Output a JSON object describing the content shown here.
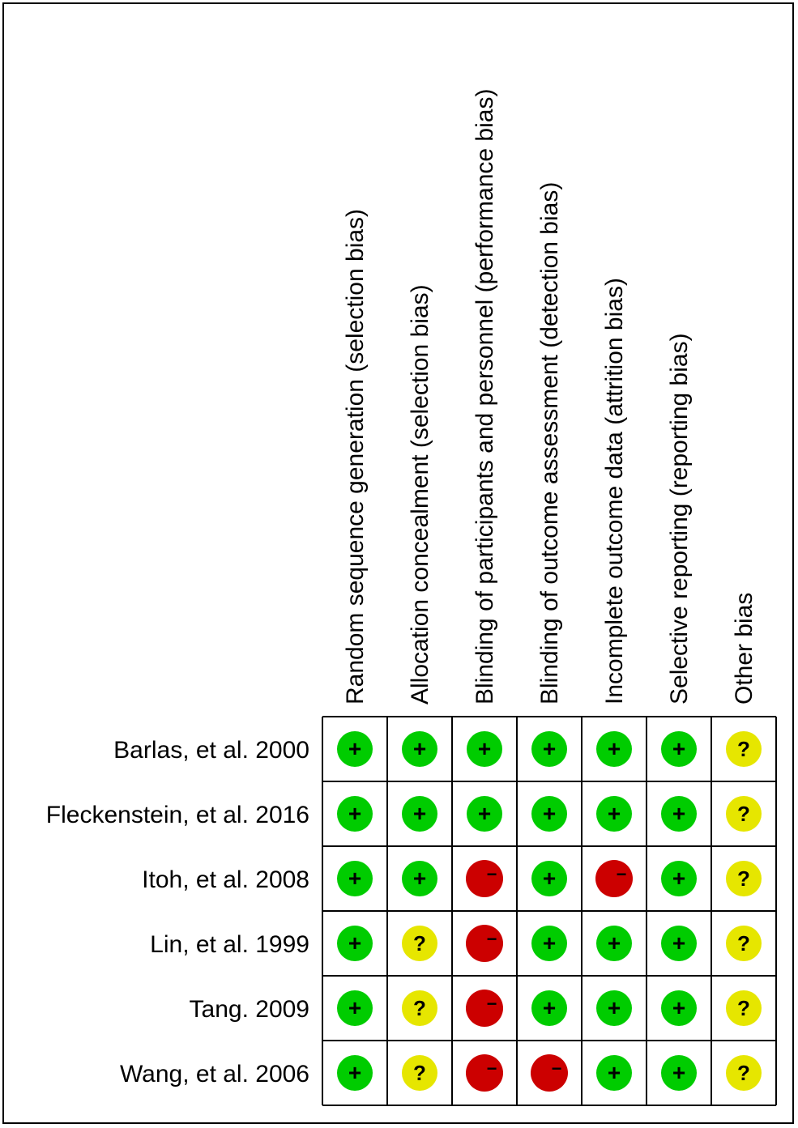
{
  "chart_data": {
    "type": "table",
    "domains": [
      "Random sequence generation (selection bias)",
      "Allocation concealment (selection bias)",
      "Blinding of participants and personnel (performance bias)",
      "Blinding of outcome assessment (detection bias)",
      "Incomplete outcome data (attrition bias)",
      "Selective reporting (reporting bias)",
      "Other bias"
    ],
    "studies": [
      "Barlas, et al. 2000",
      "Fleckenstein, et al. 2016",
      "Itoh, et al. 2008",
      "Lin, et al. 1999",
      "Tang. 2009",
      "Wang, et al. 2006"
    ],
    "judgements": [
      [
        "low",
        "low",
        "low",
        "low",
        "low",
        "low",
        "unclear"
      ],
      [
        "low",
        "low",
        "low",
        "low",
        "low",
        "low",
        "unclear"
      ],
      [
        "low",
        "low",
        "high",
        "low",
        "high",
        "low",
        "unclear"
      ],
      [
        "low",
        "unclear",
        "high",
        "low",
        "low",
        "low",
        "unclear"
      ],
      [
        "low",
        "unclear",
        "high",
        "low",
        "low",
        "low",
        "unclear"
      ],
      [
        "low",
        "unclear",
        "high",
        "high",
        "low",
        "low",
        "unclear"
      ]
    ],
    "symbols": {
      "low": "+",
      "unclear": "?",
      "high": "−"
    },
    "colors": {
      "low": "#00cc00",
      "unclear": "#e6e600",
      "high": "#cc0000",
      "grid": "#000000"
    }
  }
}
